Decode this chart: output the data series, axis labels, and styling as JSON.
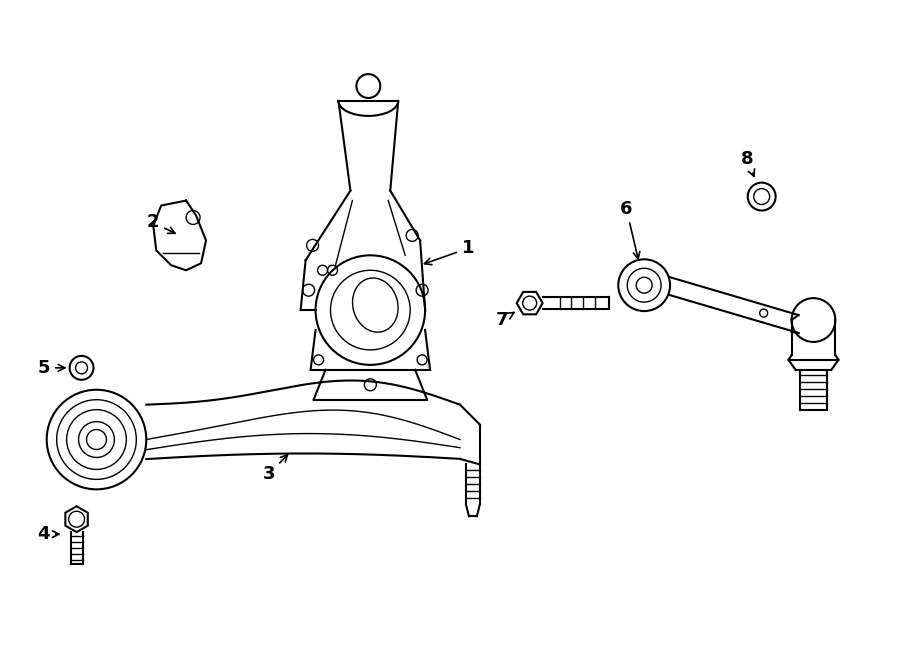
{
  "background_color": "#ffffff",
  "line_color": "#000000",
  "label_color": "#000000",
  "fig_width": 9.0,
  "fig_height": 6.61,
  "dpi": 100
}
